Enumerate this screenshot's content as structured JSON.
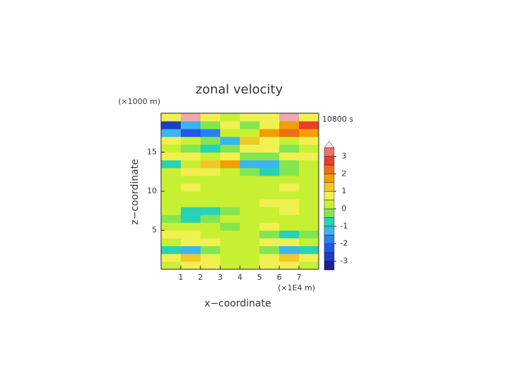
{
  "chart_data": {
    "type": "contour",
    "title": "zonal velocity",
    "y_unit": "(×1000 m)",
    "time_label": "10800 s",
    "x_unit": "(×1E4 m)",
    "xlabel": "x−coordinate",
    "ylabel": "z−coordinate",
    "xlim": [
      0,
      8
    ],
    "ylim": [
      0,
      20
    ],
    "xticks": [
      1,
      2,
      3,
      4,
      5,
      6,
      7
    ],
    "yticks": [
      5,
      10,
      15
    ],
    "x": [
      0.5,
      1.5,
      2.5,
      3.5,
      4.5,
      5.5,
      6.5,
      7.5
    ],
    "y": [
      0.5,
      1.5,
      2.5,
      3.5,
      4.5,
      5.5,
      6.5,
      7.5,
      8.5,
      9.5,
      10.5,
      11.5,
      12.5,
      13.5,
      14.5,
      15.5,
      16.5,
      17.5,
      18.5,
      19.5
    ],
    "values": [
      [
        0,
        0.5,
        0.8,
        0.3,
        0.3,
        0.5,
        0.8,
        0.3
      ],
      [
        0.5,
        1.2,
        0.8,
        0,
        0,
        0.8,
        1.2,
        0.5
      ],
      [
        -0.8,
        -1.2,
        -0.5,
        0,
        0,
        -0.5,
        -1.2,
        -0.8
      ],
      [
        0.3,
        0.6,
        0.5,
        0,
        0,
        0.5,
        0.6,
        0.3
      ],
      [
        0.5,
        0.8,
        0.3,
        0,
        0,
        -0.3,
        -0.8,
        -0.5
      ],
      [
        0.3,
        0.2,
        0,
        -0.2,
        0,
        0.5,
        0.3,
        0.2
      ],
      [
        -0.3,
        -0.6,
        -0.3,
        0,
        0,
        0.2,
        0.3,
        0.2
      ],
      [
        0,
        -0.8,
        -0.6,
        -0.2,
        0,
        0.3,
        0.6,
        0.3
      ],
      [
        0.2,
        0.3,
        0,
        0,
        0.2,
        0.7,
        0.8,
        0.3
      ],
      [
        0.3,
        0.4,
        0.3,
        0.2,
        0.2,
        0.3,
        0.4,
        0.3
      ],
      [
        0.3,
        0.5,
        0.4,
        0,
        0,
        0.4,
        0.5,
        0.3
      ],
      [
        0,
        0.3,
        0.2,
        0,
        0,
        0.3,
        0.2,
        0
      ],
      [
        0,
        0.5,
        0.8,
        0.3,
        -0.3,
        -0.8,
        -0.5,
        0
      ],
      [
        -1,
        0.3,
        1.2,
        1.5,
        -1.2,
        -1.5,
        -0.5,
        0.3
      ],
      [
        0.5,
        0.8,
        0.3,
        0.5,
        -0.5,
        -0.3,
        0.5,
        0.8
      ],
      [
        0,
        -0.3,
        -0.8,
        -0.3,
        0.5,
        0.8,
        -0.3,
        0.3
      ],
      [
        0.5,
        0.3,
        -0.5,
        -1.2,
        1.2,
        0.5,
        0.3,
        0.5
      ],
      [
        -1.5,
        -2.2,
        -1.8,
        0.2,
        0.3,
        1.5,
        2.2,
        1.5
      ],
      [
        -2.8,
        -1.5,
        -0.3,
        0.5,
        -0.3,
        0.5,
        1.5,
        2.5
      ],
      [
        0.8,
        3.8,
        0.8,
        0.3,
        0.5,
        0.8,
        3.8,
        0.8
      ]
    ],
    "levels": [
      -3.5,
      -3,
      -2.5,
      -2,
      -1.5,
      -1,
      -0.5,
      0,
      0.5,
      1,
      1.5,
      2,
      2.5,
      3,
      3.5
    ],
    "colors": [
      "#0a0a64",
      "#1e1e96",
      "#1e3cc8",
      "#1e5ae6",
      "#2882f0",
      "#3cb4f0",
      "#28d2b4",
      "#82e650",
      "#c8f032",
      "#f0f050",
      "#f0c828",
      "#f0a000",
      "#f06e14",
      "#f03c28",
      "#f06e6e",
      "#f0a8a8",
      "#fae6e6"
    ],
    "colorbar_ticks": [
      -3,
      -2,
      -1,
      0,
      1,
      2,
      3
    ]
  }
}
